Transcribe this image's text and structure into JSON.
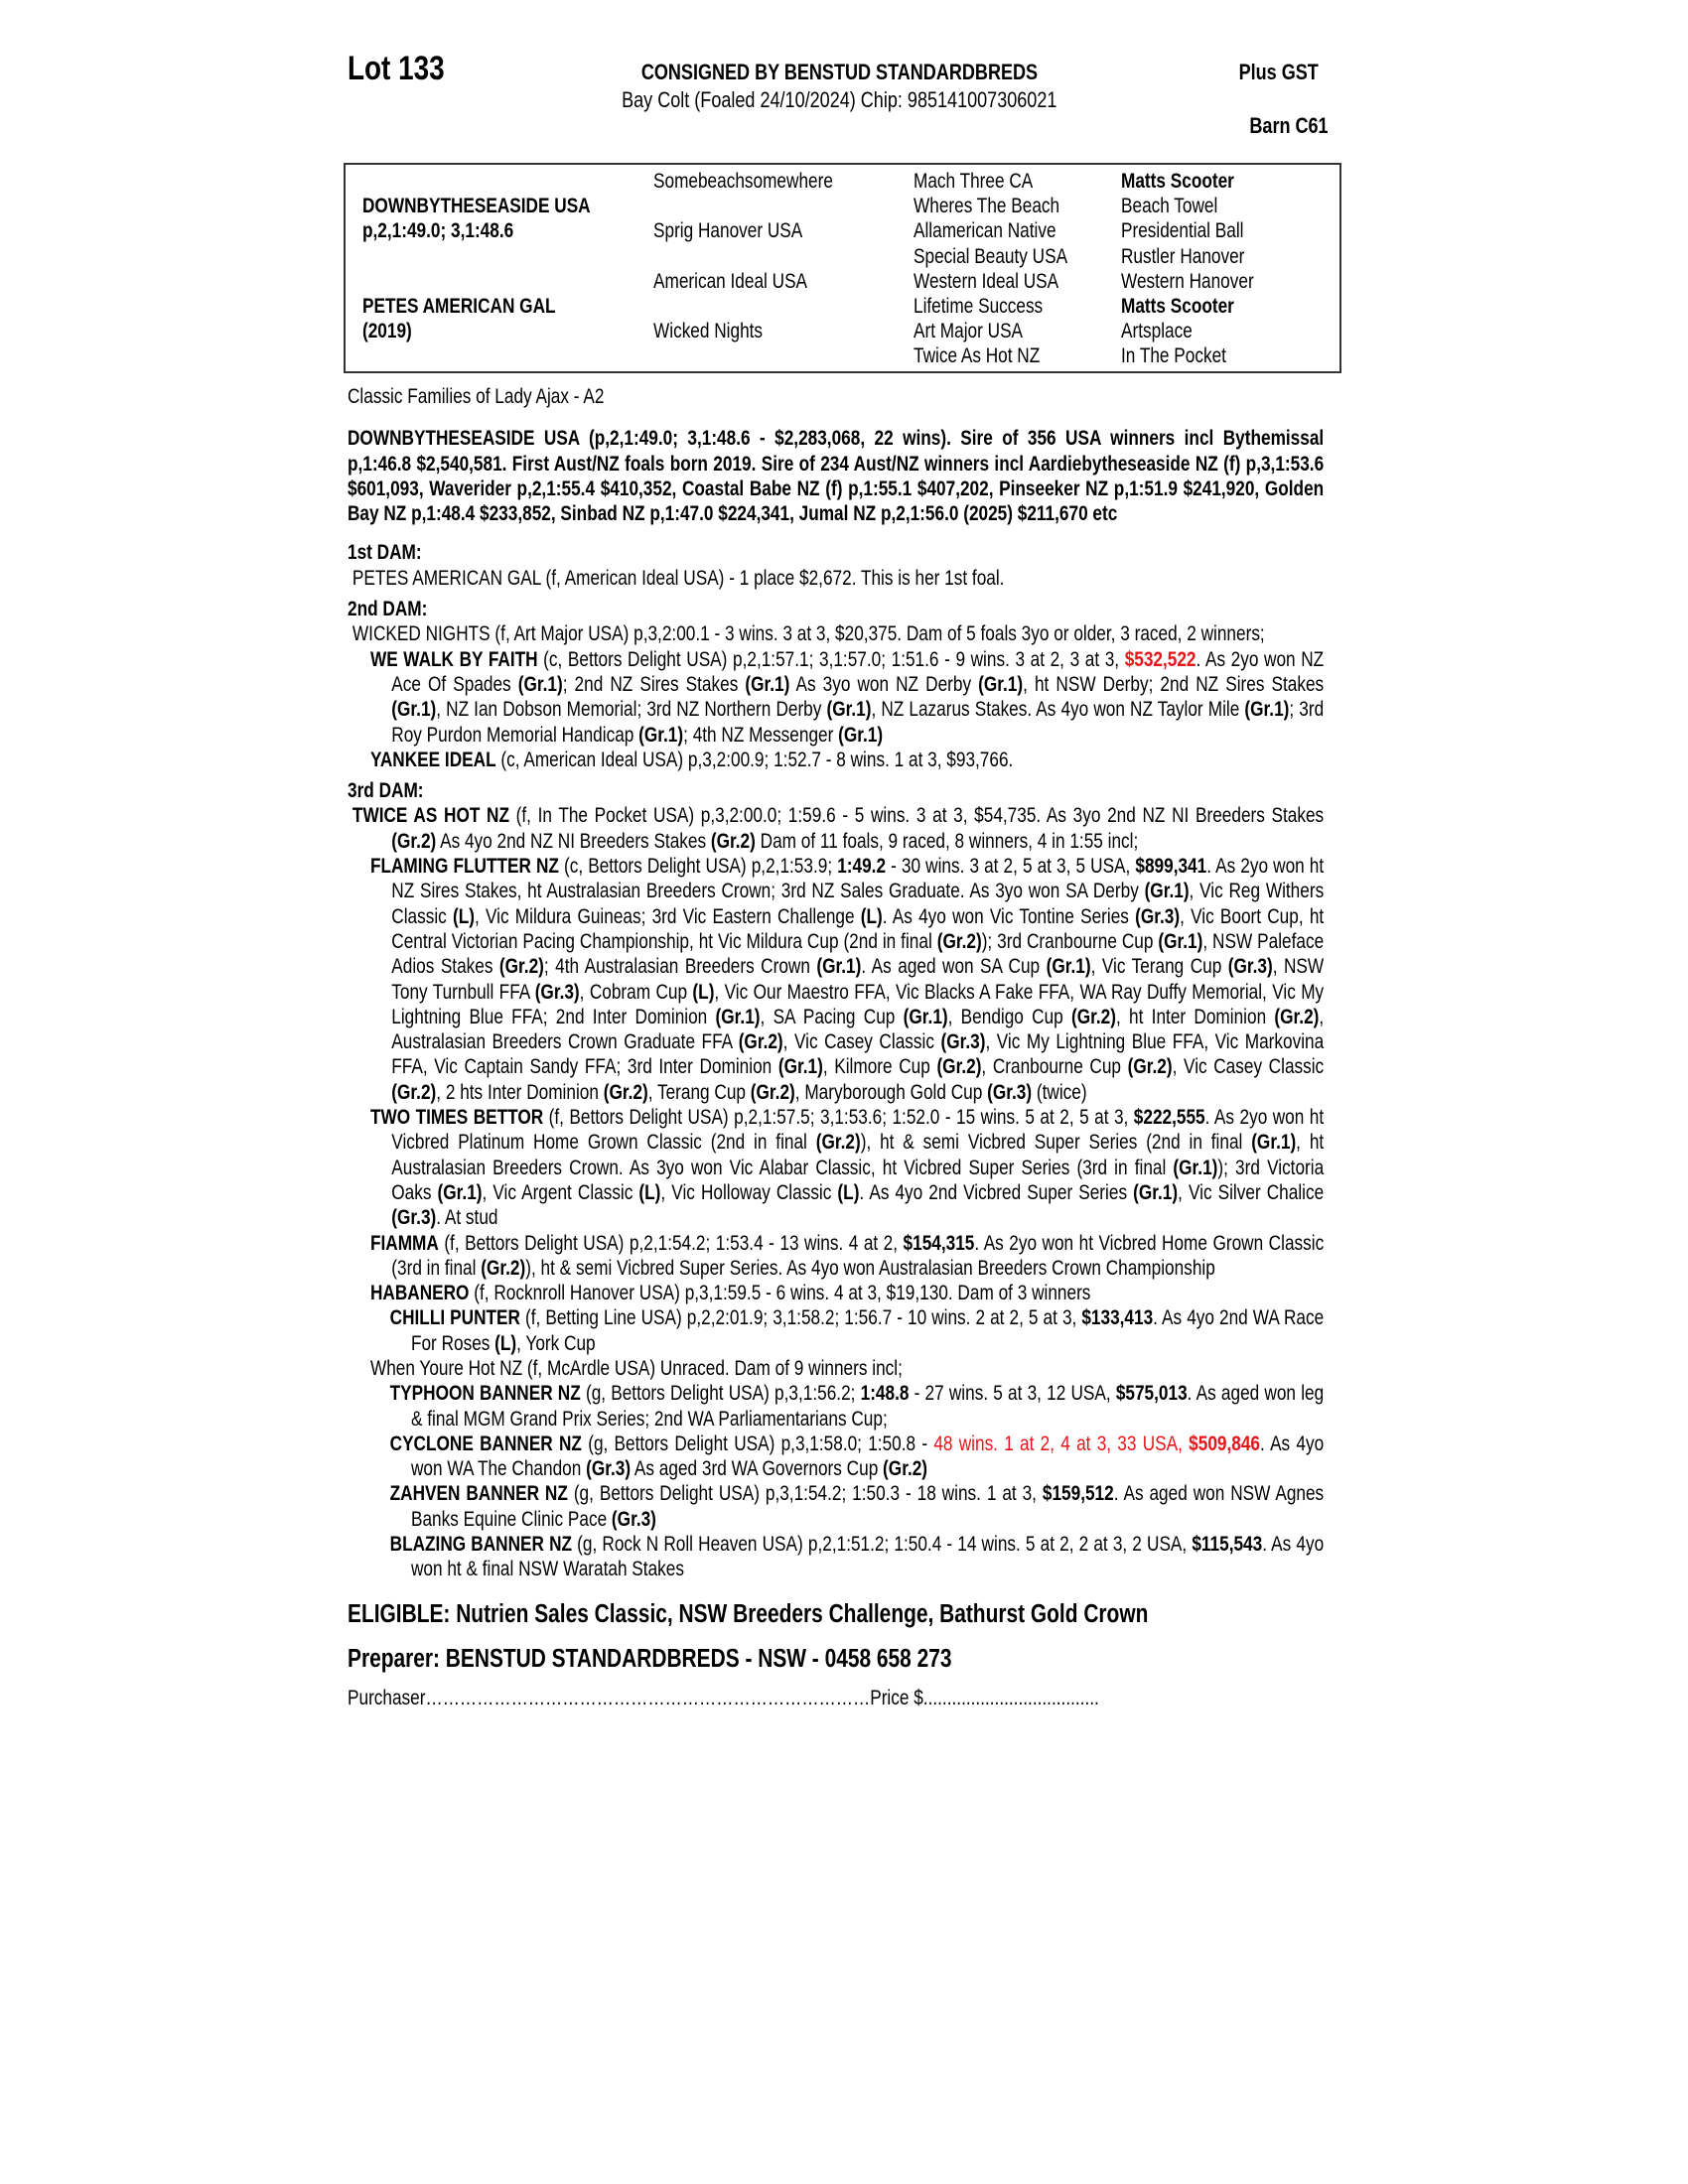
{
  "header": {
    "lot": "Lot 133",
    "consigned": "CONSIGNED BY BENSTUD STANDARDBREDS",
    "description": "Bay Colt (Foaled 24/10/2024) Chip: 985141007306021",
    "gst": "Plus GST",
    "barn": "Barn C61"
  },
  "pedigree": {
    "col1": [
      {
        "row": 1,
        "t": "DOWNBYTHESEASIDE USA",
        "bold": true
      },
      {
        "row": 2,
        "t": "p,2,1:49.0; 3,1:48.6",
        "bold": true
      },
      {
        "row": 5,
        "t": "PETES AMERICAN GAL",
        "bold": true
      },
      {
        "row": 6,
        "t": "(2019)",
        "bold": true
      }
    ],
    "col2": [
      {
        "row": 0,
        "t": "Somebeachsomewhere"
      },
      {
        "row": 2,
        "t": "Sprig Hanover USA"
      },
      {
        "row": 4,
        "t": "American Ideal USA"
      },
      {
        "row": 6,
        "t": "Wicked Nights"
      }
    ],
    "col3": [
      {
        "row": 0,
        "t": "Mach Three CA"
      },
      {
        "row": 1,
        "t": "Wheres The Beach"
      },
      {
        "row": 2,
        "t": "Allamerican Native"
      },
      {
        "row": 3,
        "t": "Special Beauty USA"
      },
      {
        "row": 4,
        "t": "Western Ideal USA"
      },
      {
        "row": 5,
        "t": "Lifetime Success"
      },
      {
        "row": 6,
        "t": "Art Major USA"
      },
      {
        "row": 7,
        "t": "Twice As Hot NZ"
      }
    ],
    "col4": [
      {
        "row": 0,
        "t": "Matts Scooter",
        "bold": true
      },
      {
        "row": 1,
        "t": "Beach Towel"
      },
      {
        "row": 2,
        "t": "Presidential Ball"
      },
      {
        "row": 3,
        "t": "Rustler Hanover"
      },
      {
        "row": 4,
        "t": "Western Hanover"
      },
      {
        "row": 5,
        "t": "Matts Scooter",
        "bold": true
      },
      {
        "row": 6,
        "t": "Artsplace"
      },
      {
        "row": 7,
        "t": "In The Pocket"
      }
    ]
  },
  "family": "Classic Families of Lady Ajax - A2",
  "sire_paragraph": "DOWNBYTHESEASIDE USA (p,2,1:49.0; 3,1:48.6 - $2,283,068, 22 wins). Sire of 356 USA winners incl Bythemissal p,1:46.8 $2,540,581. First Aust/NZ foals born 2019. Sire of 234 Aust/NZ winners incl Aardiebytheseaside NZ (f) p,3,1:53.6 $601,093, Waverider p,2,1:55.4 $410,352, Coastal Babe NZ (f) p,1:55.1 $407,202, Pinseeker NZ p,1:51.9 $241,920, Golden Bay NZ p,1:48.4 $233,852, Sinbad NZ p,1:47.0 $224,341, Jumal NZ p,2,1:56.0 (2025) $211,670 etc",
  "sections": [
    {
      "heading": "1st DAM:",
      "entries": [
        {
          "level": 0,
          "segs": [
            {
              "t": "PETES AMERICAN GAL (f, American Ideal USA) - 1 place $2,672. This is her 1st foal.",
              "s": ""
            }
          ]
        }
      ]
    },
    {
      "heading": "2nd DAM:",
      "entries": [
        {
          "level": 0,
          "segs": [
            {
              "t": "WICKED NIGHTS (f, Art Major USA) p,3,2:00.1 - 3 wins. 3 at 3, $20,375. Dam of 5 foals 3yo or older, 3 raced, 2 winners;",
              "s": ""
            }
          ]
        },
        {
          "level": 1,
          "segs": [
            {
              "t": "WE WALK BY FAITH",
              "s": "b"
            },
            {
              "t": " (c, Bettors Delight USA) p,2,1:57.1; 3,1:57.0; 1:51.6 - 9 wins. 3 at 2, 3 at 3, ",
              "s": ""
            },
            {
              "t": "$532,522",
              "s": "rb"
            },
            {
              "t": ". As 2yo won NZ Ace Of Spades ",
              "s": ""
            },
            {
              "t": "(Gr.1)",
              "s": "b"
            },
            {
              "t": "; 2nd NZ Sires Stakes ",
              "s": ""
            },
            {
              "t": "(Gr.1)",
              "s": "b"
            },
            {
              "t": " As 3yo won NZ Derby ",
              "s": ""
            },
            {
              "t": "(Gr.1)",
              "s": "b"
            },
            {
              "t": ", ht NSW Derby; 2nd NZ Sires Stakes ",
              "s": ""
            },
            {
              "t": "(Gr.1)",
              "s": "b"
            },
            {
              "t": ", NZ Ian Dobson Memorial; 3rd NZ Northern Derby ",
              "s": ""
            },
            {
              "t": "(Gr.1)",
              "s": "b"
            },
            {
              "t": ", NZ Lazarus Stakes. As 4yo won NZ Taylor Mile ",
              "s": ""
            },
            {
              "t": "(Gr.1)",
              "s": "b"
            },
            {
              "t": "; 3rd Roy Purdon Memorial Handicap ",
              "s": ""
            },
            {
              "t": "(Gr.1)",
              "s": "b"
            },
            {
              "t": "; 4th NZ Messenger ",
              "s": ""
            },
            {
              "t": "(Gr.1)",
              "s": "b"
            }
          ]
        },
        {
          "level": 1,
          "segs": [
            {
              "t": "YANKEE IDEAL",
              "s": "b"
            },
            {
              "t": " (c, American Ideal USA) p,3,2:00.9; 1:52.7 - 8 wins. 1 at 3, $93,766.",
              "s": ""
            }
          ]
        }
      ]
    },
    {
      "heading": "3rd DAM:",
      "entries": [
        {
          "level": 0,
          "segs": [
            {
              "t": "TWICE AS HOT NZ",
              "s": "b"
            },
            {
              "t": " (f, In The Pocket USA) p,3,2:00.0; 1:59.6 - 5 wins. 3 at 3, $54,735. As 3yo 2nd NZ NI Breeders Stakes ",
              "s": ""
            },
            {
              "t": "(Gr.2)",
              "s": "b"
            },
            {
              "t": " As 4yo 2nd NZ NI Breeders Stakes ",
              "s": ""
            },
            {
              "t": "(Gr.2)",
              "s": "b"
            },
            {
              "t": " Dam of 11 foals, 9 raced, 8 winners, 4 in 1:55 incl;",
              "s": ""
            }
          ]
        },
        {
          "level": 1,
          "segs": [
            {
              "t": "FLAMING FLUTTER NZ",
              "s": "b"
            },
            {
              "t": " (c, Bettors Delight USA) p,2,1:53.9; ",
              "s": ""
            },
            {
              "t": "1:49.2",
              "s": "b"
            },
            {
              "t": " - 30 wins. 3 at 2, 5 at 3, 5 USA, ",
              "s": ""
            },
            {
              "t": "$899,341",
              "s": "b"
            },
            {
              "t": ". As 2yo won ht NZ Sires Stakes, ht Australasian Breeders Crown; 3rd NZ Sales Graduate. As 3yo won SA Derby ",
              "s": ""
            },
            {
              "t": "(Gr.1)",
              "s": "b"
            },
            {
              "t": ", Vic Reg Withers Classic ",
              "s": ""
            },
            {
              "t": "(L)",
              "s": "b"
            },
            {
              "t": ", Vic Mildura Guineas; 3rd Vic Eastern Challenge ",
              "s": ""
            },
            {
              "t": "(L)",
              "s": "b"
            },
            {
              "t": ". As 4yo won Vic Tontine Series ",
              "s": ""
            },
            {
              "t": "(Gr.3)",
              "s": "b"
            },
            {
              "t": ", Vic Boort Cup, ht Central Victorian Pacing Championship, ht Vic Mildura Cup (2nd in final ",
              "s": ""
            },
            {
              "t": "(Gr.2)",
              "s": "b"
            },
            {
              "t": "); 3rd Cranbourne Cup ",
              "s": ""
            },
            {
              "t": "(Gr.1)",
              "s": "b"
            },
            {
              "t": ", NSW Paleface Adios Stakes ",
              "s": ""
            },
            {
              "t": "(Gr.2)",
              "s": "b"
            },
            {
              "t": "; 4th Australasian Breeders Crown ",
              "s": ""
            },
            {
              "t": "(Gr.1)",
              "s": "b"
            },
            {
              "t": ". As aged won SA Cup ",
              "s": ""
            },
            {
              "t": "(Gr.1)",
              "s": "b"
            },
            {
              "t": ", Vic Terang Cup ",
              "s": ""
            },
            {
              "t": "(Gr.3)",
              "s": "b"
            },
            {
              "t": ", NSW Tony Turnbull FFA ",
              "s": ""
            },
            {
              "t": "(Gr.3)",
              "s": "b"
            },
            {
              "t": ", Cobram Cup ",
              "s": ""
            },
            {
              "t": "(L)",
              "s": "b"
            },
            {
              "t": ", Vic Our Maestro FFA, Vic Blacks A Fake FFA, WA Ray Duffy Memorial, Vic My Lightning Blue FFA; 2nd Inter Dominion ",
              "s": ""
            },
            {
              "t": "(Gr.1)",
              "s": "b"
            },
            {
              "t": ", SA Pacing Cup ",
              "s": ""
            },
            {
              "t": "(Gr.1)",
              "s": "b"
            },
            {
              "t": ", Bendigo Cup ",
              "s": ""
            },
            {
              "t": "(Gr.2)",
              "s": "b"
            },
            {
              "t": ", ht Inter Dominion ",
              "s": ""
            },
            {
              "t": "(Gr.2)",
              "s": "b"
            },
            {
              "t": ", Australasian Breeders Crown Graduate FFA ",
              "s": ""
            },
            {
              "t": "(Gr.2)",
              "s": "b"
            },
            {
              "t": ", Vic Casey Classic ",
              "s": ""
            },
            {
              "t": "(Gr.3)",
              "s": "b"
            },
            {
              "t": ", Vic My Lightning Blue FFA, Vic Markovina FFA, Vic Captain Sandy FFA; 3rd Inter Dominion ",
              "s": ""
            },
            {
              "t": "(Gr.1)",
              "s": "b"
            },
            {
              "t": ", Kilmore Cup ",
              "s": ""
            },
            {
              "t": "(Gr.2)",
              "s": "b"
            },
            {
              "t": ", Cranbourne Cup ",
              "s": ""
            },
            {
              "t": "(Gr.2)",
              "s": "b"
            },
            {
              "t": ", Vic Casey Classic ",
              "s": ""
            },
            {
              "t": "(Gr.2)",
              "s": "b"
            },
            {
              "t": ", 2 hts Inter Dominion ",
              "s": ""
            },
            {
              "t": "(Gr.2)",
              "s": "b"
            },
            {
              "t": ", Terang Cup ",
              "s": ""
            },
            {
              "t": "(Gr.2)",
              "s": "b"
            },
            {
              "t": ", Maryborough Gold Cup ",
              "s": ""
            },
            {
              "t": "(Gr.3)",
              "s": "b"
            },
            {
              "t": " (twice)",
              "s": ""
            }
          ]
        },
        {
          "level": 1,
          "segs": [
            {
              "t": "TWO TIMES BETTOR",
              "s": "b"
            },
            {
              "t": " (f, Bettors Delight USA) p,2,1:57.5; 3,1:53.6; 1:52.0 - 15 wins. 5 at 2, 5 at 3, ",
              "s": ""
            },
            {
              "t": "$222,555",
              "s": "b"
            },
            {
              "t": ". As 2yo won ht Vicbred Platinum Home Grown Classic (2nd in final ",
              "s": ""
            },
            {
              "t": "(Gr.2)",
              "s": "b"
            },
            {
              "t": "), ht & semi Vicbred Super Series (2nd in final ",
              "s": ""
            },
            {
              "t": "(Gr.1)",
              "s": "b"
            },
            {
              "t": ", ht Australasian Breeders Crown. As 3yo won Vic Alabar Classic, ht Vicbred Super Series (3rd in final ",
              "s": ""
            },
            {
              "t": "(Gr.1)",
              "s": "b"
            },
            {
              "t": "); 3rd Victoria Oaks ",
              "s": ""
            },
            {
              "t": "(Gr.1)",
              "s": "b"
            },
            {
              "t": ", Vic Argent Classic ",
              "s": ""
            },
            {
              "t": "(L)",
              "s": "b"
            },
            {
              "t": ", Vic Holloway Classic ",
              "s": ""
            },
            {
              "t": "(L)",
              "s": "b"
            },
            {
              "t": ". As 4yo 2nd Vicbred Super Series ",
              "s": ""
            },
            {
              "t": "(Gr.1)",
              "s": "b"
            },
            {
              "t": ", Vic Silver Chalice ",
              "s": ""
            },
            {
              "t": "(Gr.3)",
              "s": "b"
            },
            {
              "t": ". At stud",
              "s": ""
            }
          ]
        },
        {
          "level": 1,
          "segs": [
            {
              "t": "FIAMMA",
              "s": "b"
            },
            {
              "t": " (f, Bettors Delight USA) p,2,1:54.2; 1:53.4 - 13 wins. 4 at 2, ",
              "s": ""
            },
            {
              "t": "$154,315",
              "s": "b"
            },
            {
              "t": ". As 2yo won ht Vicbred Home Grown Classic (3rd in final ",
              "s": ""
            },
            {
              "t": "(Gr.2)",
              "s": "b"
            },
            {
              "t": "), ht & semi Vicbred Super Series. As 4yo won Australasian Breeders Crown Championship",
              "s": ""
            }
          ]
        },
        {
          "level": 1,
          "segs": [
            {
              "t": "HABANERO",
              "s": "b"
            },
            {
              "t": " (f, Rocknroll Hanover USA) p,3,1:59.5 - 6 wins. 4 at 3, $19,130. Dam of 3 winners",
              "s": ""
            }
          ]
        },
        {
          "level": 2,
          "segs": [
            {
              "t": "CHILLI PUNTER",
              "s": "b"
            },
            {
              "t": " (f, Betting Line USA) p,2,2:01.9; 3,1:58.2; 1:56.7 - 10 wins. 2 at 2, 5 at 3, ",
              "s": ""
            },
            {
              "t": "$133,413",
              "s": "b"
            },
            {
              "t": ". As 4yo 2nd WA Race For Roses ",
              "s": ""
            },
            {
              "t": "(L)",
              "s": "b"
            },
            {
              "t": ", York Cup",
              "s": ""
            }
          ]
        },
        {
          "level": 1,
          "segs": [
            {
              "t": "When Youre Hot NZ (f, McArdle USA) Unraced. Dam of 9 winners incl;",
              "s": ""
            }
          ]
        },
        {
          "level": 2,
          "segs": [
            {
              "t": "TYPHOON BANNER NZ",
              "s": "b"
            },
            {
              "t": " (g, Bettors Delight USA) p,3,1:56.2; ",
              "s": ""
            },
            {
              "t": "1:48.8",
              "s": "b"
            },
            {
              "t": " - 27 wins. 5 at 3, 12 USA, ",
              "s": ""
            },
            {
              "t": "$575,013",
              "s": "b"
            },
            {
              "t": ". As aged won leg & final MGM Grand Prix Series; 2nd WA Parliamentarians Cup;",
              "s": ""
            }
          ]
        },
        {
          "level": 2,
          "segs": [
            {
              "t": "CYCLONE BANNER NZ",
              "s": "b"
            },
            {
              "t": " (g, Bettors Delight USA) p,3,1:58.0; 1:50.8 - ",
              "s": ""
            },
            {
              "t": "48 wins. 1 at 2, 4 at 3, 33 USA, ",
              "s": "r"
            },
            {
              "t": "$509,846",
              "s": "rb"
            },
            {
              "t": ". As 4yo won WA The Chandon ",
              "s": ""
            },
            {
              "t": "(Gr.3)",
              "s": "b"
            },
            {
              "t": " As aged 3rd WA Governors Cup ",
              "s": ""
            },
            {
              "t": "(Gr.2)",
              "s": "b"
            }
          ]
        },
        {
          "level": 2,
          "segs": [
            {
              "t": "ZAHVEN BANNER NZ",
              "s": "b"
            },
            {
              "t": " (g, Bettors Delight USA) p,3,1:54.2; 1:50.3 - 18 wins. 1 at 3, ",
              "s": ""
            },
            {
              "t": "$159,512",
              "s": "b"
            },
            {
              "t": ". As aged won NSW Agnes Banks Equine Clinic Pace ",
              "s": ""
            },
            {
              "t": "(Gr.3)",
              "s": "b"
            }
          ]
        },
        {
          "level": 2,
          "segs": [
            {
              "t": "BLAZING BANNER NZ",
              "s": "b"
            },
            {
              "t": " (g, Rock N Roll Heaven USA) p,2,1:51.2; 1:50.4 - 14 wins. 5 at 2, 2 at 3, 2 USA, ",
              "s": ""
            },
            {
              "t": "$115,543",
              "s": "b"
            },
            {
              "t": ". As 4yo won ht & final NSW Waratah Stakes",
              "s": ""
            }
          ]
        }
      ]
    }
  ],
  "footer": {
    "eligible": "ELIGIBLE: Nutrien Sales Classic, NSW Breeders Challenge, Bathurst Gold Crown",
    "preparer": "Preparer: BENSTUD STANDARDBREDS - NSW - 0458 658 273",
    "purchaser": "Purchaser……………………………………………………………………Price $....................................."
  },
  "colors": {
    "highlight": "#e8141a",
    "text": "#000000",
    "border": "#333333"
  }
}
